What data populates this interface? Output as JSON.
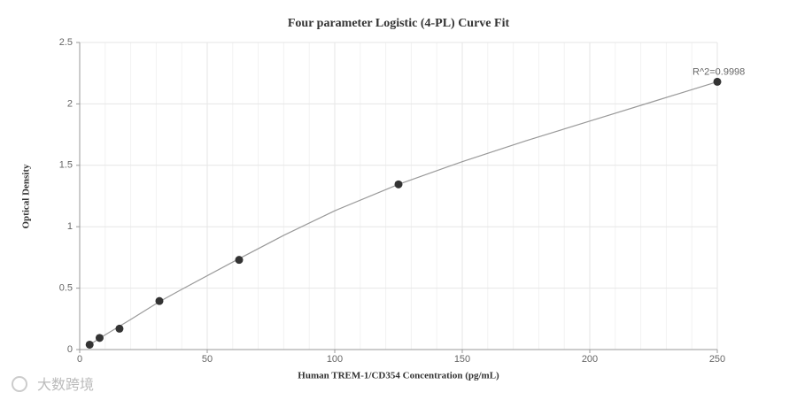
{
  "chart_data": {
    "type": "scatter",
    "title": "Four parameter Logistic (4-PL) Curve Fit",
    "x_label": "Human TREM-1/CD354 Concentration (pg/mL)",
    "y_label": "Optical Density",
    "annotation": "R^2=0.9998",
    "x": [
      3.9,
      7.8,
      15.6,
      31.25,
      62.5,
      125,
      250
    ],
    "values": [
      0.04,
      0.095,
      0.17,
      0.395,
      0.73,
      1.345,
      2.18
    ],
    "color": "#333333",
    "curve": {
      "x": [
        3.9,
        10,
        20,
        31.25,
        40,
        62.5,
        80,
        100,
        125,
        150,
        175,
        200,
        225,
        250
      ],
      "values": [
        0.04,
        0.12,
        0.245,
        0.39,
        0.49,
        0.74,
        0.93,
        1.13,
        1.345,
        1.53,
        1.7,
        1.86,
        2.02,
        2.18
      ],
      "color": "#999999"
    },
    "xlim": [
      0,
      250
    ],
    "xticks": [
      0,
      50,
      100,
      150,
      200,
      250
    ],
    "ylim": [
      0,
      2.5
    ],
    "yticks": [
      0,
      0.5,
      1,
      1.5,
      2,
      2.5
    ],
    "grid": true
  },
  "watermark": "大数跨境"
}
